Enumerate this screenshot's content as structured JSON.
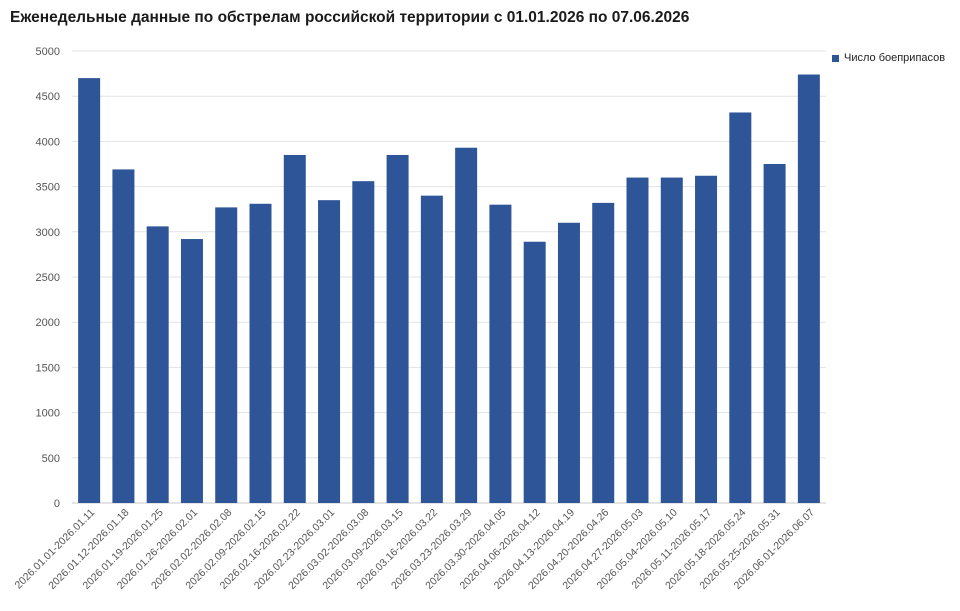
{
  "chart_data": {
    "type": "bar",
    "title": "Еженедельные данные по обстрелам российской территории с 01.01.2026 по 07.06.2026",
    "xlabel": "",
    "ylabel": "",
    "ylim": [
      0,
      5000
    ],
    "yticks": [
      0,
      500,
      1000,
      1500,
      2000,
      2500,
      3000,
      3500,
      4000,
      4500,
      5000
    ],
    "grid": true,
    "legend_position": "top-right",
    "categories": [
      "2026.01.01-2026.01.11",
      "2026.01.12-2026.01.18",
      "2026.01.19-2026.01.25",
      "2026.01.26-2026.02.01",
      "2026.02.02-2026.02.08",
      "2026.02.09-2026.02.15",
      "2026.02.16-2026.02.22",
      "2026.02.23-2026.03.01",
      "2026.03.02-2026.03.08",
      "2026.03.09-2026.03.15",
      "2026.03.16-2026.03.22",
      "2026.03.23-2026.03.29",
      "2026.03.30-2026.04.05",
      "2026.04.06-2026.04.12",
      "2026.04.13-2026.04.19",
      "2026.04.20-2026.04.26",
      "2026.04.27-2026.05.03",
      "2026.05.04-2026.05.10",
      "2026.05.11-2026.05.17",
      "2026.05.18-2026.05.24",
      "2026.05.25-2026.05.31",
      "2026.06.01-2026.06.07"
    ],
    "series": [
      {
        "name": "Число боеприпасов",
        "color": "#2e5597",
        "values": [
          4700,
          3690,
          3060,
          2920,
          3270,
          3310,
          3850,
          3350,
          3560,
          3850,
          3400,
          3930,
          3300,
          2890,
          3100,
          3320,
          3600,
          3600,
          3620,
          4320,
          3750,
          4740
        ]
      }
    ]
  }
}
